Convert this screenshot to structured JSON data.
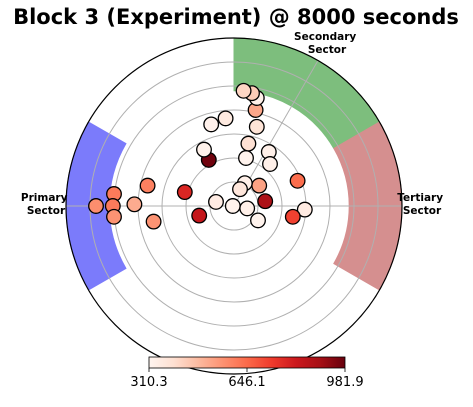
{
  "chart_data": {
    "type": "scatter",
    "projection": "polar",
    "title": "Block 3  (Experiment) @ 8000 seconds",
    "radial_rings": [
      1,
      2,
      3,
      4,
      5,
      6
    ],
    "rlim": [
      0,
      7
    ],
    "spoke_angles_deg": [
      0,
      60,
      180
    ],
    "grid": true,
    "sectors": [
      {
        "name": "primary",
        "label_lines": [
          "Primary",
          "Sector"
        ],
        "theta_deg": [
          150,
          210
        ],
        "r_range": [
          5.2,
          7
        ],
        "color": "#7b7bfb"
      },
      {
        "name": "secondary",
        "label_lines": [
          "Secondary",
          "Sector"
        ],
        "theta_deg": [
          30,
          90
        ],
        "r_range": [
          4.8,
          7
        ],
        "color": "#7dbe7d"
      },
      {
        "name": "tertiary",
        "label_lines": [
          "Tertiary",
          "Sector"
        ],
        "theta_deg": [
          -30,
          30
        ],
        "r_range": [
          4.8,
          7
        ],
        "color": "#d58f8f"
      }
    ],
    "colorbar": {
      "colormap": "Reds",
      "min": 310.3,
      "max": 981.9,
      "ticks": [
        "310.3",
        "646.1",
        "981.9"
      ]
    },
    "points": [
      {
        "x": -1.05,
        "y": 1.92,
        "value": 970
      },
      {
        "x": -2.05,
        "y": 0.58,
        "value": 780
      },
      {
        "x": -1.45,
        "y": -0.4,
        "value": 830
      },
      {
        "x": -0.75,
        "y": 0.17,
        "value": 345
      },
      {
        "x": -3.6,
        "y": 0.85,
        "value": 600
      },
      {
        "x": -4.15,
        "y": 0.07,
        "value": 510
      },
      {
        "x": -3.35,
        "y": -0.65,
        "value": 560
      },
      {
        "x": -0.05,
        "y": 0.0,
        "value": 318
      },
      {
        "x": 0.55,
        "y": -0.1,
        "value": 330
      },
      {
        "x": 1.0,
        "y": -0.6,
        "value": 320
      },
      {
        "x": 1.3,
        "y": 0.2,
        "value": 880
      },
      {
        "x": 1.05,
        "y": 0.85,
        "value": 530
      },
      {
        "x": 0.45,
        "y": 0.95,
        "value": 330
      },
      {
        "x": 1.45,
        "y": 2.25,
        "value": 330
      },
      {
        "x": 0.5,
        "y": 2.0,
        "value": 320
      },
      {
        "x": 0.6,
        "y": 2.6,
        "value": 390
      },
      {
        "x": 0.95,
        "y": 3.3,
        "value": 380
      },
      {
        "x": 0.9,
        "y": 4.0,
        "value": 520
      },
      {
        "x": 0.95,
        "y": 4.5,
        "value": 330
      },
      {
        "x": 0.75,
        "y": 4.7,
        "value": 440
      },
      {
        "x": 0.4,
        "y": 4.8,
        "value": 420
      },
      {
        "x": -0.35,
        "y": 3.65,
        "value": 355
      },
      {
        "x": -0.95,
        "y": 3.4,
        "value": 325
      },
      {
        "x": -1.25,
        "y": 2.35,
        "value": 323
      },
      {
        "x": 1.5,
        "y": 1.75,
        "value": 330
      },
      {
        "x": 0.25,
        "y": 0.7,
        "value": 370
      },
      {
        "x": 2.65,
        "y": 1.05,
        "value": 640
      },
      {
        "x": 2.95,
        "y": -0.15,
        "value": 350
      },
      {
        "x": 2.45,
        "y": -0.45,
        "value": 720
      },
      {
        "x": -5.75,
        "y": 0.0,
        "value": 570
      },
      {
        "x": -5.0,
        "y": 0.5,
        "value": 610
      },
      {
        "x": -5.05,
        "y": 0.0,
        "value": 610
      },
      {
        "x": -5.0,
        "y": -0.45,
        "value": 560
      }
    ]
  }
}
